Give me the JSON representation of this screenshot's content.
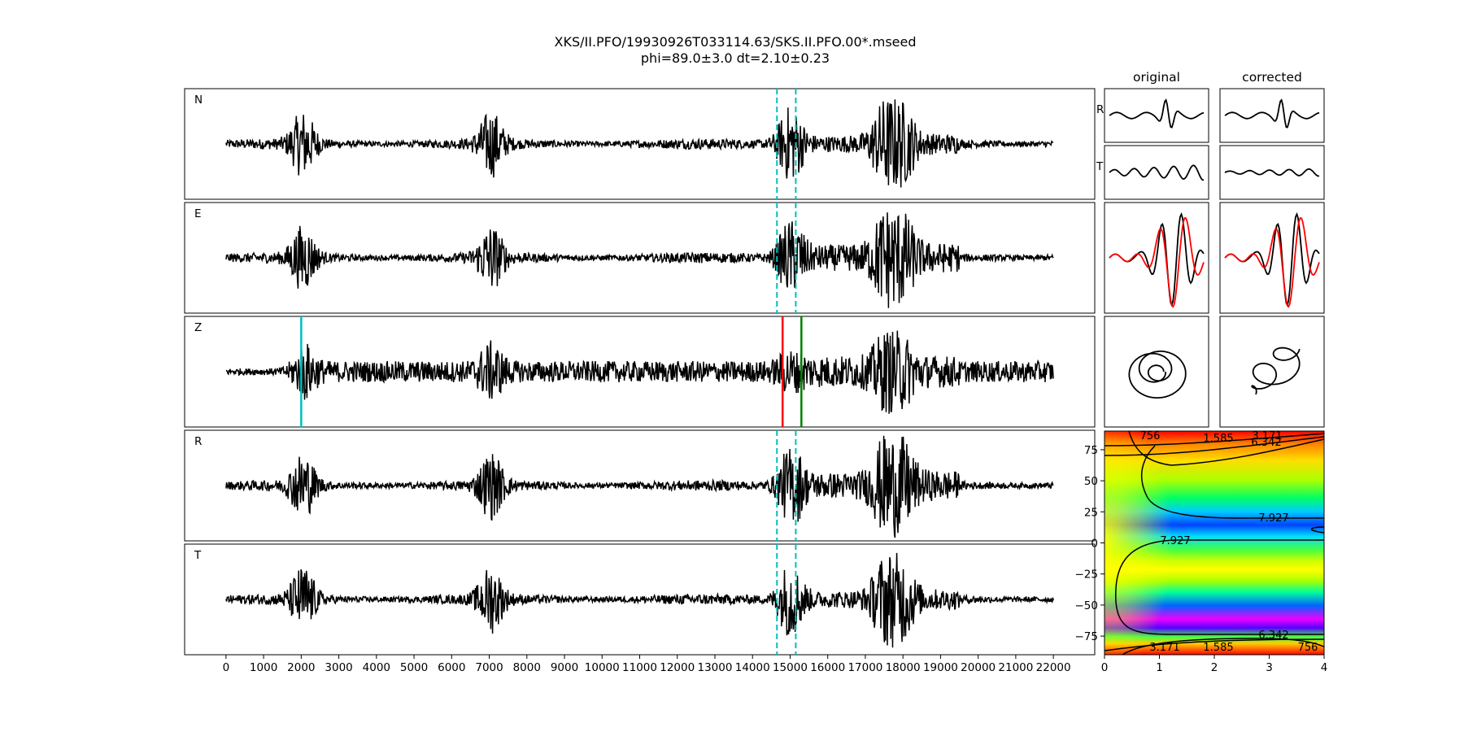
{
  "title": {
    "line1": "XKS/II.PFO/19930926T033114.63/SKS.II.PFO.00*.mseed",
    "line2": "phi=89.0±3.0 dt=2.10±0.23"
  },
  "chart_data": [
    {
      "type": "line",
      "name": "seismogram traces",
      "channels": [
        "N",
        "E",
        "Z",
        "R",
        "T"
      ],
      "x_ticks": [
        0,
        1000,
        2000,
        3000,
        4000,
        5000,
        6000,
        7000,
        8000,
        9000,
        10000,
        11000,
        12000,
        13000,
        14000,
        15000,
        16000,
        17000,
        18000,
        19000,
        20000,
        21000,
        22000
      ],
      "xlim": [
        -1100,
        23100
      ],
      "trace_range": [
        0,
        22000
      ],
      "window_lines": {
        "values": [
          14650,
          15150
        ],
        "color": "#00bfbf",
        "style": "dashed"
      },
      "picks": [
        {
          "value": 2000,
          "color": "#00bfbf"
        },
        {
          "value": 14800,
          "color": "#ff0000"
        },
        {
          "value": 15300,
          "color": "#008000"
        }
      ],
      "trace_color": "#000000",
      "bursts": [
        {
          "x": 2050,
          "amp": 0.9
        },
        {
          "x": 7050,
          "amp": 0.9
        },
        {
          "x": 15000,
          "amp": 1.0
        },
        {
          "x": 17500,
          "amp": 1.0
        },
        {
          "x": 18000,
          "amp": 0.9
        }
      ]
    },
    {
      "type": "line",
      "name": "particle motion panels",
      "columns": [
        "original",
        "corrected"
      ],
      "rows": [
        "R",
        "T"
      ],
      "series_colors": [
        "#000000",
        "#ff0000"
      ]
    },
    {
      "type": "heatmap",
      "name": "energy grid",
      "x_ticks": [
        "0",
        "1",
        "2",
        "3",
        "4"
      ],
      "xlim": [
        0,
        4
      ],
      "y_ticks": [
        "75",
        "50",
        "25",
        "0",
        "−25",
        "−50",
        "−75"
      ],
      "y_tick_values": [
        75,
        50,
        25,
        0,
        -25,
        -50,
        -75
      ],
      "ylim": [
        -90,
        90
      ],
      "colormap": "gist_rainbow",
      "contour_labels": [
        "1.585",
        "3.171",
        "6.342",
        "7.927",
        "7.927",
        "6.342",
        "3.171",
        "1.585",
        "756",
        "756"
      ]
    }
  ]
}
